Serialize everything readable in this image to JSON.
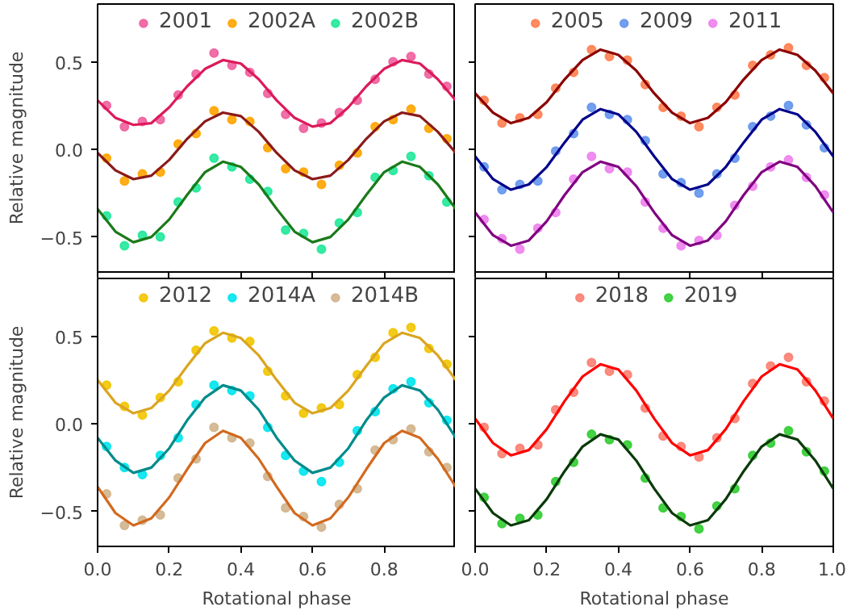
{
  "chart_data": [
    {
      "type": "scatter",
      "ylabel": "Relative magnitude",
      "tick_labels": "y",
      "legend": "top",
      "marker": "circle",
      "grid": false,
      "xlim": [
        0,
        1
      ],
      "ylim": [
        -0.7,
        0.83
      ],
      "xticks": [
        {
          "value": 0,
          "label": null
        },
        {
          "value": 0.2,
          "label": null
        },
        {
          "value": 0.4,
          "label": null
        },
        {
          "value": 0.6,
          "label": null
        },
        {
          "value": 0.8,
          "label": null
        },
        {
          "value": 1,
          "label": null
        }
      ],
      "yticks": [
        {
          "value": -0.5,
          "label": "−0.5"
        },
        {
          "value": 0,
          "label": "0.0"
        },
        {
          "value": 0.5,
          "label": "0.5"
        }
      ],
      "x": [
        0.025,
        0.075,
        0.125,
        0.175,
        0.225,
        0.275,
        0.325,
        0.375,
        0.425,
        0.475,
        0.525,
        0.575,
        0.625,
        0.675,
        0.725,
        0.775,
        0.825,
        0.875,
        0.925,
        0.975
      ],
      "series": [
        {
          "name": "2001",
          "color": "#f0609e",
          "values": [
            0.25,
            0.13,
            0.16,
            0.17,
            0.31,
            0.43,
            0.55,
            0.48,
            0.44,
            0.32,
            0.2,
            0.12,
            0.15,
            0.21,
            0.28,
            0.4,
            0.5,
            0.53,
            0.43,
            0.36
          ]
        },
        {
          "name": "2002A",
          "color": "#ffa500",
          "values": [
            -0.05,
            -0.18,
            -0.14,
            -0.13,
            0.03,
            0.09,
            0.22,
            0.17,
            0.16,
            0.01,
            -0.11,
            -0.13,
            -0.2,
            -0.09,
            -0.02,
            0.13,
            0.17,
            0.23,
            0.12,
            0.06
          ]
        },
        {
          "name": "2002B",
          "color": "#22e89a",
          "values": [
            -0.38,
            -0.55,
            -0.49,
            -0.5,
            -0.3,
            -0.22,
            -0.05,
            -0.1,
            -0.17,
            -0.24,
            -0.46,
            -0.48,
            -0.57,
            -0.42,
            -0.36,
            -0.16,
            -0.12,
            -0.04,
            -0.15,
            -0.3
          ]
        },
        {
          "type": "line",
          "marker": "none",
          "color": "#dc1a5a",
          "x": [
            0,
            0.05,
            0.1,
            0.15,
            0.2,
            0.25,
            0.3,
            0.35,
            0.4,
            0.45,
            0.5,
            0.55,
            0.6,
            0.65,
            0.7,
            0.75,
            0.8,
            0.85,
            0.9,
            0.95,
            1
          ],
          "values": [
            0.28,
            0.18,
            0.14,
            0.15,
            0.24,
            0.36,
            0.46,
            0.51,
            0.49,
            0.4,
            0.28,
            0.18,
            0.13,
            0.15,
            0.24,
            0.36,
            0.46,
            0.51,
            0.49,
            0.4,
            0.28
          ]
        },
        {
          "type": "line",
          "marker": "none",
          "color": "#8b1a1a",
          "x": [
            0,
            0.05,
            0.1,
            0.15,
            0.2,
            0.25,
            0.3,
            0.35,
            0.4,
            0.45,
            0.5,
            0.55,
            0.6,
            0.65,
            0.7,
            0.75,
            0.8,
            0.85,
            0.9,
            0.95,
            1
          ],
          "values": [
            -0.02,
            -0.12,
            -0.17,
            -0.15,
            -0.06,
            0.06,
            0.16,
            0.21,
            0.19,
            0.1,
            -0.02,
            -0.12,
            -0.17,
            -0.15,
            -0.06,
            0.06,
            0.16,
            0.21,
            0.19,
            0.1,
            -0.02
          ]
        },
        {
          "type": "line",
          "marker": "none",
          "color": "#1a7a1a",
          "x": [
            0,
            0.05,
            0.1,
            0.15,
            0.2,
            0.25,
            0.3,
            0.35,
            0.4,
            0.45,
            0.5,
            0.55,
            0.6,
            0.65,
            0.7,
            0.75,
            0.8,
            0.85,
            0.9,
            0.95,
            1
          ],
          "values": [
            -0.34,
            -0.47,
            -0.53,
            -0.5,
            -0.4,
            -0.26,
            -0.13,
            -0.07,
            -0.1,
            -0.2,
            -0.34,
            -0.47,
            -0.53,
            -0.5,
            -0.4,
            -0.26,
            -0.13,
            -0.07,
            -0.1,
            -0.2,
            -0.34
          ]
        }
      ]
    },
    {
      "type": "scatter",
      "tick_labels": false,
      "legend": "top",
      "marker": "circle",
      "grid": false,
      "xlim": [
        0,
        1
      ],
      "ylim": [
        -0.7,
        0.83
      ],
      "xticks": [
        {
          "value": 0,
          "label": null
        },
        {
          "value": 0.2,
          "label": null
        },
        {
          "value": 0.4,
          "label": null
        },
        {
          "value": 0.6,
          "label": null
        },
        {
          "value": 0.8,
          "label": null
        },
        {
          "value": 1,
          "label": null
        }
      ],
      "yticks": [
        {
          "value": -0.5,
          "label": null
        },
        {
          "value": 0,
          "label": null
        },
        {
          "value": 0.5,
          "label": null
        }
      ],
      "x": [
        0.025,
        0.075,
        0.125,
        0.175,
        0.225,
        0.275,
        0.325,
        0.375,
        0.425,
        0.475,
        0.525,
        0.575,
        0.625,
        0.675,
        0.725,
        0.775,
        0.825,
        0.875,
        0.925,
        0.975
      ],
      "series": [
        {
          "name": "2005",
          "color": "#ff7f50",
          "values": [
            0.28,
            0.15,
            0.18,
            0.2,
            0.35,
            0.44,
            0.57,
            0.53,
            0.51,
            0.37,
            0.24,
            0.19,
            0.13,
            0.24,
            0.31,
            0.48,
            0.54,
            0.58,
            0.48,
            0.41
          ]
        },
        {
          "name": "2009",
          "color": "#6495ed",
          "values": [
            -0.1,
            -0.23,
            -0.2,
            -0.18,
            -0.01,
            0.09,
            0.24,
            0.2,
            0.17,
            0.05,
            -0.14,
            -0.19,
            -0.25,
            -0.14,
            -0.05,
            0.13,
            0.19,
            0.25,
            0.14,
            0.01
          ]
        },
        {
          "name": "2011",
          "color": "#ee82ee",
          "values": [
            -0.4,
            -0.51,
            -0.57,
            -0.45,
            -0.36,
            -0.17,
            -0.04,
            -0.11,
            -0.13,
            -0.3,
            -0.45,
            -0.55,
            -0.52,
            -0.49,
            -0.32,
            -0.21,
            -0.1,
            -0.06,
            -0.16,
            -0.26
          ]
        },
        {
          "type": "line",
          "marker": "none",
          "color": "#8b0000",
          "x": [
            0,
            0.05,
            0.1,
            0.15,
            0.2,
            0.25,
            0.3,
            0.35,
            0.4,
            0.45,
            0.5,
            0.55,
            0.6,
            0.65,
            0.7,
            0.75,
            0.8,
            0.85,
            0.9,
            0.95,
            1
          ],
          "values": [
            0.32,
            0.21,
            0.15,
            0.18,
            0.27,
            0.4,
            0.51,
            0.57,
            0.54,
            0.45,
            0.32,
            0.21,
            0.15,
            0.18,
            0.27,
            0.4,
            0.51,
            0.57,
            0.54,
            0.45,
            0.32
          ]
        },
        {
          "type": "line",
          "marker": "none",
          "color": "#00008b",
          "x": [
            0,
            0.05,
            0.1,
            0.15,
            0.2,
            0.25,
            0.3,
            0.35,
            0.4,
            0.45,
            0.5,
            0.55,
            0.6,
            0.65,
            0.7,
            0.75,
            0.8,
            0.85,
            0.9,
            0.95,
            1
          ],
          "values": [
            -0.04,
            -0.17,
            -0.23,
            -0.2,
            -0.1,
            0.04,
            0.17,
            0.23,
            0.2,
            0.1,
            -0.04,
            -0.17,
            -0.23,
            -0.2,
            -0.1,
            0.04,
            0.17,
            0.23,
            0.2,
            0.1,
            -0.04
          ]
        },
        {
          "type": "line",
          "marker": "none",
          "color": "#800080",
          "x": [
            0,
            0.05,
            0.1,
            0.15,
            0.2,
            0.25,
            0.3,
            0.35,
            0.4,
            0.45,
            0.5,
            0.55,
            0.6,
            0.65,
            0.7,
            0.75,
            0.8,
            0.85,
            0.9,
            0.95,
            1
          ],
          "values": [
            -0.36,
            -0.49,
            -0.55,
            -0.52,
            -0.41,
            -0.26,
            -0.13,
            -0.07,
            -0.1,
            -0.21,
            -0.36,
            -0.49,
            -0.55,
            -0.52,
            -0.41,
            -0.26,
            -0.13,
            -0.07,
            -0.1,
            -0.21,
            -0.36
          ]
        }
      ]
    },
    {
      "type": "scatter",
      "xlabel": "Rotational phase",
      "ylabel": "Relative magnitude",
      "legend": "top",
      "marker": "circle",
      "grid": false,
      "xlim": [
        0,
        1
      ],
      "ylim": [
        -0.7,
        0.83
      ],
      "xticks": [
        {
          "value": 0,
          "label": "0.0"
        },
        {
          "value": 0.2,
          "label": "0.2"
        },
        {
          "value": 0.4,
          "label": "0.4"
        },
        {
          "value": 0.6,
          "label": "0.6"
        },
        {
          "value": 0.8,
          "label": "0.8"
        },
        {
          "value": 1,
          "label": null
        }
      ],
      "yticks": [
        {
          "value": -0.5,
          "label": "−0.5"
        },
        {
          "value": 0,
          "label": "0.0"
        },
        {
          "value": 0.5,
          "label": "0.5"
        }
      ],
      "x": [
        0.025,
        0.075,
        0.125,
        0.175,
        0.225,
        0.275,
        0.325,
        0.375,
        0.425,
        0.475,
        0.525,
        0.575,
        0.625,
        0.675,
        0.725,
        0.775,
        0.825,
        0.875,
        0.925,
        0.975
      ],
      "series": [
        {
          "name": "2012",
          "color": "#f2c500",
          "values": [
            0.22,
            0.1,
            0.05,
            0.15,
            0.24,
            0.42,
            0.53,
            0.49,
            0.47,
            0.3,
            0.16,
            0.06,
            0.09,
            0.11,
            0.28,
            0.38,
            0.52,
            0.55,
            0.43,
            0.34
          ]
        },
        {
          "name": "2014A",
          "color": "#00e5ee",
          "values": [
            -0.13,
            -0.25,
            -0.29,
            -0.18,
            -0.08,
            0.11,
            0.22,
            0.19,
            0.16,
            -0.02,
            -0.18,
            -0.27,
            -0.33,
            -0.22,
            -0.04,
            0.07,
            0.2,
            0.24,
            0.12,
            0.02
          ]
        },
        {
          "name": "2014B",
          "color": "#d2b48c",
          "values": [
            -0.4,
            -0.58,
            -0.55,
            -0.52,
            -0.31,
            -0.2,
            -0.02,
            -0.08,
            -0.11,
            -0.3,
            -0.48,
            -0.53,
            -0.59,
            -0.46,
            -0.37,
            -0.15,
            -0.09,
            -0.03,
            -0.16,
            -0.25
          ]
        },
        {
          "type": "line",
          "marker": "none",
          "color": "#daa520",
          "x": [
            0,
            0.05,
            0.1,
            0.15,
            0.2,
            0.25,
            0.3,
            0.35,
            0.4,
            0.45,
            0.5,
            0.55,
            0.6,
            0.65,
            0.7,
            0.75,
            0.8,
            0.85,
            0.9,
            0.95,
            1
          ],
          "values": [
            0.25,
            0.12,
            0.06,
            0.09,
            0.19,
            0.33,
            0.46,
            0.52,
            0.49,
            0.39,
            0.25,
            0.12,
            0.06,
            0.09,
            0.19,
            0.33,
            0.46,
            0.52,
            0.49,
            0.39,
            0.25
          ]
        },
        {
          "type": "line",
          "marker": "none",
          "color": "#008b8b",
          "x": [
            0,
            0.05,
            0.1,
            0.15,
            0.2,
            0.25,
            0.3,
            0.35,
            0.4,
            0.45,
            0.5,
            0.55,
            0.6,
            0.65,
            0.7,
            0.75,
            0.8,
            0.85,
            0.9,
            0.95,
            1
          ],
          "values": [
            -0.08,
            -0.21,
            -0.28,
            -0.25,
            -0.14,
            0.02,
            0.15,
            0.22,
            0.19,
            0.08,
            -0.08,
            -0.21,
            -0.28,
            -0.25,
            -0.14,
            0.02,
            0.15,
            0.22,
            0.19,
            0.08,
            -0.08
          ]
        },
        {
          "type": "line",
          "marker": "none",
          "color": "#d2691e",
          "x": [
            0,
            0.05,
            0.1,
            0.15,
            0.2,
            0.25,
            0.3,
            0.35,
            0.4,
            0.45,
            0.5,
            0.55,
            0.6,
            0.65,
            0.7,
            0.75,
            0.8,
            0.85,
            0.9,
            0.95,
            1
          ],
          "values": [
            -0.36,
            -0.51,
            -0.58,
            -0.54,
            -0.42,
            -0.26,
            -0.11,
            -0.04,
            -0.08,
            -0.2,
            -0.36,
            -0.51,
            -0.58,
            -0.54,
            -0.42,
            -0.26,
            -0.11,
            -0.04,
            -0.08,
            -0.2,
            -0.36
          ]
        }
      ]
    },
    {
      "type": "scatter",
      "xlabel": "Rotational phase",
      "tick_labels": "x",
      "legend": "top",
      "marker": "circle",
      "grid": false,
      "xlim": [
        0,
        1
      ],
      "ylim": [
        -0.7,
        0.83
      ],
      "xticks": [
        {
          "value": 0,
          "label": "0.0"
        },
        {
          "value": 0.2,
          "label": "0.2"
        },
        {
          "value": 0.4,
          "label": "0.4"
        },
        {
          "value": 0.6,
          "label": "0.6"
        },
        {
          "value": 0.8,
          "label": "0.8"
        },
        {
          "value": 1,
          "label": "1.0"
        }
      ],
      "yticks": [
        {
          "value": -0.5,
          "label": null
        },
        {
          "value": 0,
          "label": null
        },
        {
          "value": 0.5,
          "label": null
        }
      ],
      "x": [
        0.025,
        0.075,
        0.125,
        0.175,
        0.225,
        0.275,
        0.325,
        0.375,
        0.425,
        0.475,
        0.525,
        0.575,
        0.625,
        0.675,
        0.725,
        0.775,
        0.825,
        0.875,
        0.925,
        0.975
      ],
      "series": [
        {
          "name": "2018",
          "color": "#fa8072",
          "values": [
            -0.02,
            -0.17,
            -0.14,
            -0.12,
            0.08,
            0.18,
            0.35,
            0.3,
            0.28,
            0.09,
            -0.07,
            -0.13,
            -0.19,
            -0.08,
            0.03,
            0.23,
            0.33,
            0.38,
            0.24,
            0.13
          ]
        },
        {
          "name": "2019",
          "color": "#32cd32",
          "values": [
            -0.42,
            -0.57,
            -0.54,
            -0.52,
            -0.33,
            -0.22,
            -0.06,
            -0.09,
            -0.12,
            -0.31,
            -0.48,
            -0.53,
            -0.6,
            -0.47,
            -0.37,
            -0.18,
            -0.11,
            -0.04,
            -0.16,
            -0.27
          ]
        },
        {
          "type": "line",
          "marker": "none",
          "color": "#ff0000",
          "x": [
            0,
            0.05,
            0.1,
            0.15,
            0.2,
            0.25,
            0.3,
            0.35,
            0.4,
            0.45,
            0.5,
            0.55,
            0.6,
            0.65,
            0.7,
            0.75,
            0.8,
            0.85,
            0.9,
            0.95,
            1
          ],
          "values": [
            0.03,
            -0.11,
            -0.18,
            -0.15,
            -0.03,
            0.13,
            0.27,
            0.34,
            0.31,
            0.19,
            0.03,
            -0.11,
            -0.18,
            -0.15,
            -0.03,
            0.13,
            0.27,
            0.34,
            0.31,
            0.19,
            0.03
          ]
        },
        {
          "type": "line",
          "marker": "none",
          "color": "#0a3a0a",
          "x": [
            0,
            0.05,
            0.1,
            0.15,
            0.2,
            0.25,
            0.3,
            0.35,
            0.4,
            0.45,
            0.5,
            0.55,
            0.6,
            0.65,
            0.7,
            0.75,
            0.8,
            0.85,
            0.9,
            0.95,
            1
          ],
          "values": [
            -0.37,
            -0.51,
            -0.58,
            -0.55,
            -0.43,
            -0.27,
            -0.13,
            -0.06,
            -0.09,
            -0.21,
            -0.37,
            -0.51,
            -0.58,
            -0.55,
            -0.43,
            -0.27,
            -0.13,
            -0.06,
            -0.09,
            -0.21,
            -0.37
          ]
        }
      ]
    }
  ]
}
